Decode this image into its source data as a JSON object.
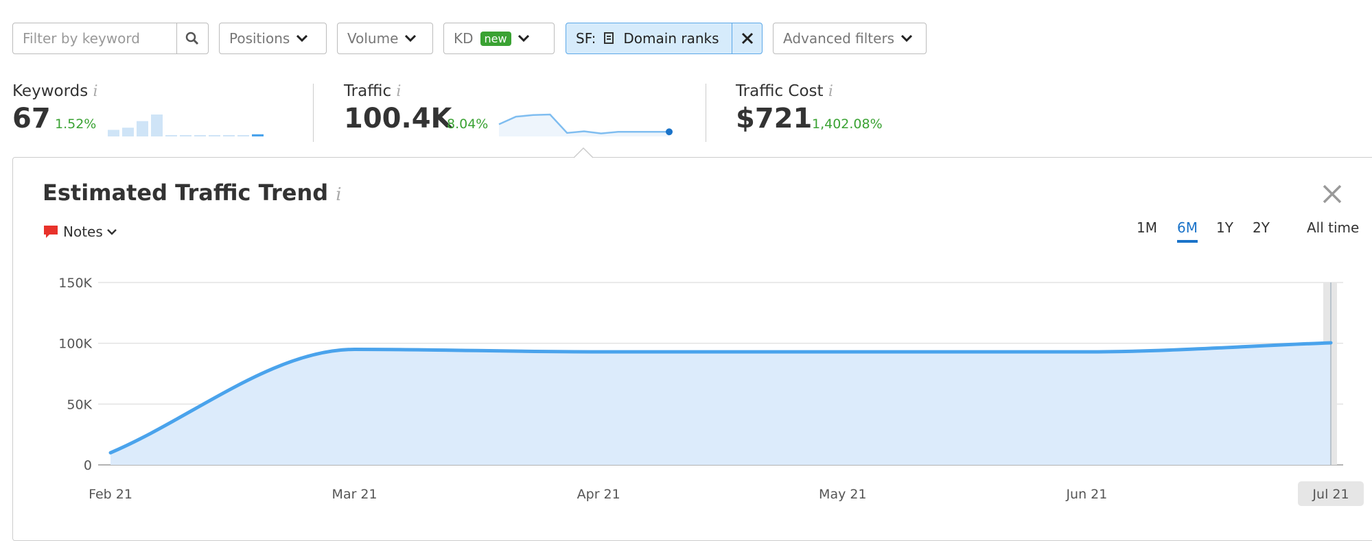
{
  "toolbar": {
    "search_placeholder": "Filter by keyword",
    "positions": "Positions",
    "volume": "Volume",
    "kd": "KD",
    "kd_badge": "new",
    "sf_label": "SF:",
    "sf_value": "Domain ranks",
    "advanced": "Advanced filters"
  },
  "metrics": [
    {
      "label": "Keywords",
      "value": "67",
      "change": "1.52%",
      "spark": [
        3,
        4,
        7,
        10,
        0.4,
        0.4,
        0.4,
        0.4,
        0.4,
        0.4,
        1
      ]
    },
    {
      "label": "Traffic",
      "value": "100.4K",
      "change": "8.04%",
      "spark": [
        40,
        68,
        74,
        76,
        8,
        14,
        6,
        12,
        12,
        12,
        12
      ]
    },
    {
      "label": "Traffic Cost",
      "value": "$721",
      "change": "1,402.08%"
    }
  ],
  "panel": {
    "title": "Estimated Traffic Trend",
    "notes": "Notes",
    "periods": [
      "1M",
      "6M",
      "1Y",
      "2Y",
      "All time"
    ],
    "active_period": 1
  },
  "chart_data": {
    "type": "area",
    "categories": [
      "Feb 21",
      "Mar 21",
      "Apr 21",
      "May 21",
      "Jun 21",
      "Jul 21"
    ],
    "values": [
      10000,
      95000,
      93000,
      93000,
      93000,
      100400
    ],
    "color": "#4aa3ec",
    "fill": "#dcebfb",
    "ylim": [
      0,
      150000
    ],
    "yticks": [
      0,
      {
        "value": 50000,
        "label": "50K"
      },
      {
        "value": 100000,
        "label": "100K"
      },
      {
        "value": 150000,
        "label": "150K"
      }
    ],
    "grid": true
  }
}
